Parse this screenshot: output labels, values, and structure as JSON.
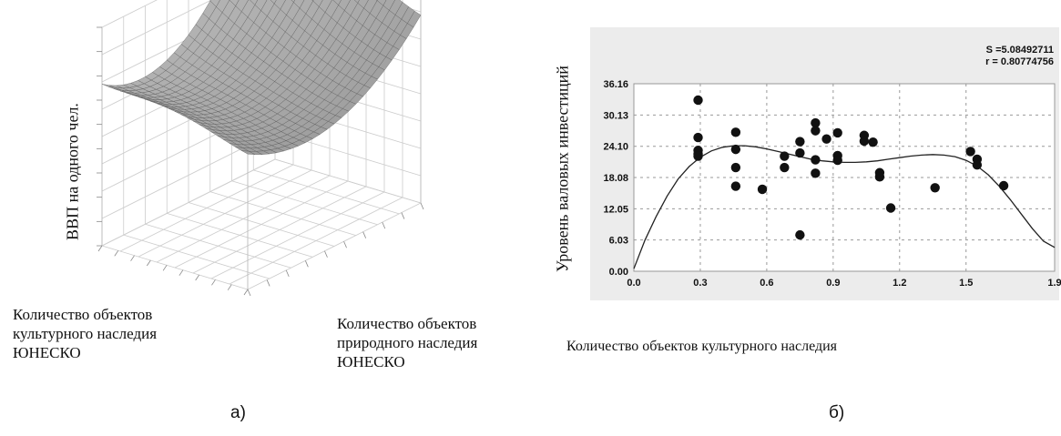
{
  "panels": {
    "a": {
      "caption": "а)",
      "zlabel": "ВВП на одного чел.",
      "xlabel": "Количество объектов\nкультурного наследия\nЮНЕСКО",
      "ylabel": "Количество объектов\nприродного наследия\nЮНЕСКО"
    },
    "b": {
      "caption": "б)",
      "ylabel": "Уровень валовых инвестиций",
      "xlabel": "Количество объектов культурного наследия",
      "stat_s": "S =5.08492711",
      "stat_r": "r = 0.80774756"
    }
  },
  "chart_data": [
    {
      "type": "surface",
      "title": "",
      "xlabel": "Количество объектов культурного наследия ЮНЕСКО",
      "ylabel": "Количество объектов природного наследия ЮНЕСКО",
      "zlabel": "ВВП на одного чел.",
      "grid": true
    },
    {
      "type": "scatter",
      "title": "",
      "xlabel": "Количество объектов культурного наследия",
      "ylabel": "Уровень валовых инвестиций",
      "xlim": [
        0.0,
        1.9
      ],
      "ylim": [
        0.0,
        36.16
      ],
      "x_ticks": [
        "0.0",
        "0.3",
        "0.6",
        "0.9",
        "1.2",
        "1.5",
        "1.9"
      ],
      "y_ticks": [
        "0.00",
        "6.03",
        "12.05",
        "18.08",
        "24.10",
        "30.13",
        "36.16"
      ],
      "grid": true,
      "annotations": [
        "S =5.08492711",
        "r = 0.80774756"
      ],
      "points": [
        [
          0.29,
          33.0
        ],
        [
          0.29,
          25.8
        ],
        [
          0.29,
          23.3
        ],
        [
          0.29,
          22.6
        ],
        [
          0.29,
          22.2
        ],
        [
          0.46,
          26.8
        ],
        [
          0.46,
          23.5
        ],
        [
          0.46,
          20.0
        ],
        [
          0.46,
          16.4
        ],
        [
          0.58,
          15.8
        ],
        [
          0.68,
          22.2
        ],
        [
          0.68,
          20.0
        ],
        [
          0.75,
          25.0
        ],
        [
          0.75,
          22.8
        ],
        [
          0.75,
          7.0
        ],
        [
          0.82,
          28.6
        ],
        [
          0.82,
          27.1
        ],
        [
          0.82,
          21.5
        ],
        [
          0.82,
          18.9
        ],
        [
          0.87,
          25.5
        ],
        [
          0.92,
          26.7
        ],
        [
          0.92,
          22.3
        ],
        [
          0.92,
          21.4
        ],
        [
          1.04,
          26.2
        ],
        [
          1.04,
          25.1
        ],
        [
          1.08,
          24.9
        ],
        [
          1.11,
          19.0
        ],
        [
          1.11,
          18.2
        ],
        [
          1.16,
          12.2
        ],
        [
          1.36,
          16.1
        ],
        [
          1.52,
          23.1
        ],
        [
          1.55,
          21.6
        ],
        [
          1.55,
          20.5
        ],
        [
          1.67,
          16.5
        ]
      ],
      "fit_curve": [
        [
          0.0,
          0.5
        ],
        [
          0.05,
          6.0
        ],
        [
          0.1,
          10.5
        ],
        [
          0.15,
          14.5
        ],
        [
          0.2,
          17.8
        ],
        [
          0.25,
          20.2
        ],
        [
          0.3,
          22.0
        ],
        [
          0.35,
          23.2
        ],
        [
          0.4,
          23.9
        ],
        [
          0.45,
          24.2
        ],
        [
          0.5,
          24.2
        ],
        [
          0.55,
          24.0
        ],
        [
          0.6,
          23.6
        ],
        [
          0.65,
          23.1
        ],
        [
          0.7,
          22.6
        ],
        [
          0.75,
          22.1
        ],
        [
          0.8,
          21.6
        ],
        [
          0.85,
          21.3
        ],
        [
          0.9,
          21.1
        ],
        [
          0.95,
          21.0
        ],
        [
          1.0,
          21.0
        ],
        [
          1.05,
          21.1
        ],
        [
          1.1,
          21.3
        ],
        [
          1.15,
          21.6
        ],
        [
          1.2,
          21.9
        ],
        [
          1.25,
          22.2
        ],
        [
          1.3,
          22.4
        ],
        [
          1.35,
          22.5
        ],
        [
          1.4,
          22.4
        ],
        [
          1.45,
          22.1
        ],
        [
          1.5,
          21.4
        ],
        [
          1.55,
          20.3
        ],
        [
          1.6,
          18.6
        ],
        [
          1.65,
          16.4
        ],
        [
          1.7,
          13.8
        ],
        [
          1.75,
          11.0
        ],
        [
          1.8,
          8.2
        ],
        [
          1.85,
          5.8
        ],
        [
          1.9,
          4.6
        ]
      ]
    }
  ]
}
